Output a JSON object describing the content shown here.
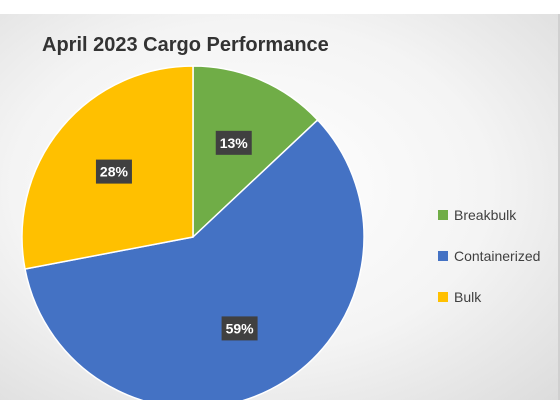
{
  "chart_data": {
    "type": "pie",
    "title": "April 2023 Cargo Performance",
    "start_angle_deg": 0,
    "direction": "clockwise",
    "legend_position": "right",
    "slices": [
      {
        "name": "Breakbulk",
        "value": 13,
        "label": "13%",
        "color": "#70AD47"
      },
      {
        "name": "Containerized",
        "value": 59,
        "label": "59%",
        "color": "#4472C4"
      },
      {
        "name": "Bulk",
        "value": 28,
        "label": "28%",
        "color": "#FFC000"
      }
    ]
  }
}
